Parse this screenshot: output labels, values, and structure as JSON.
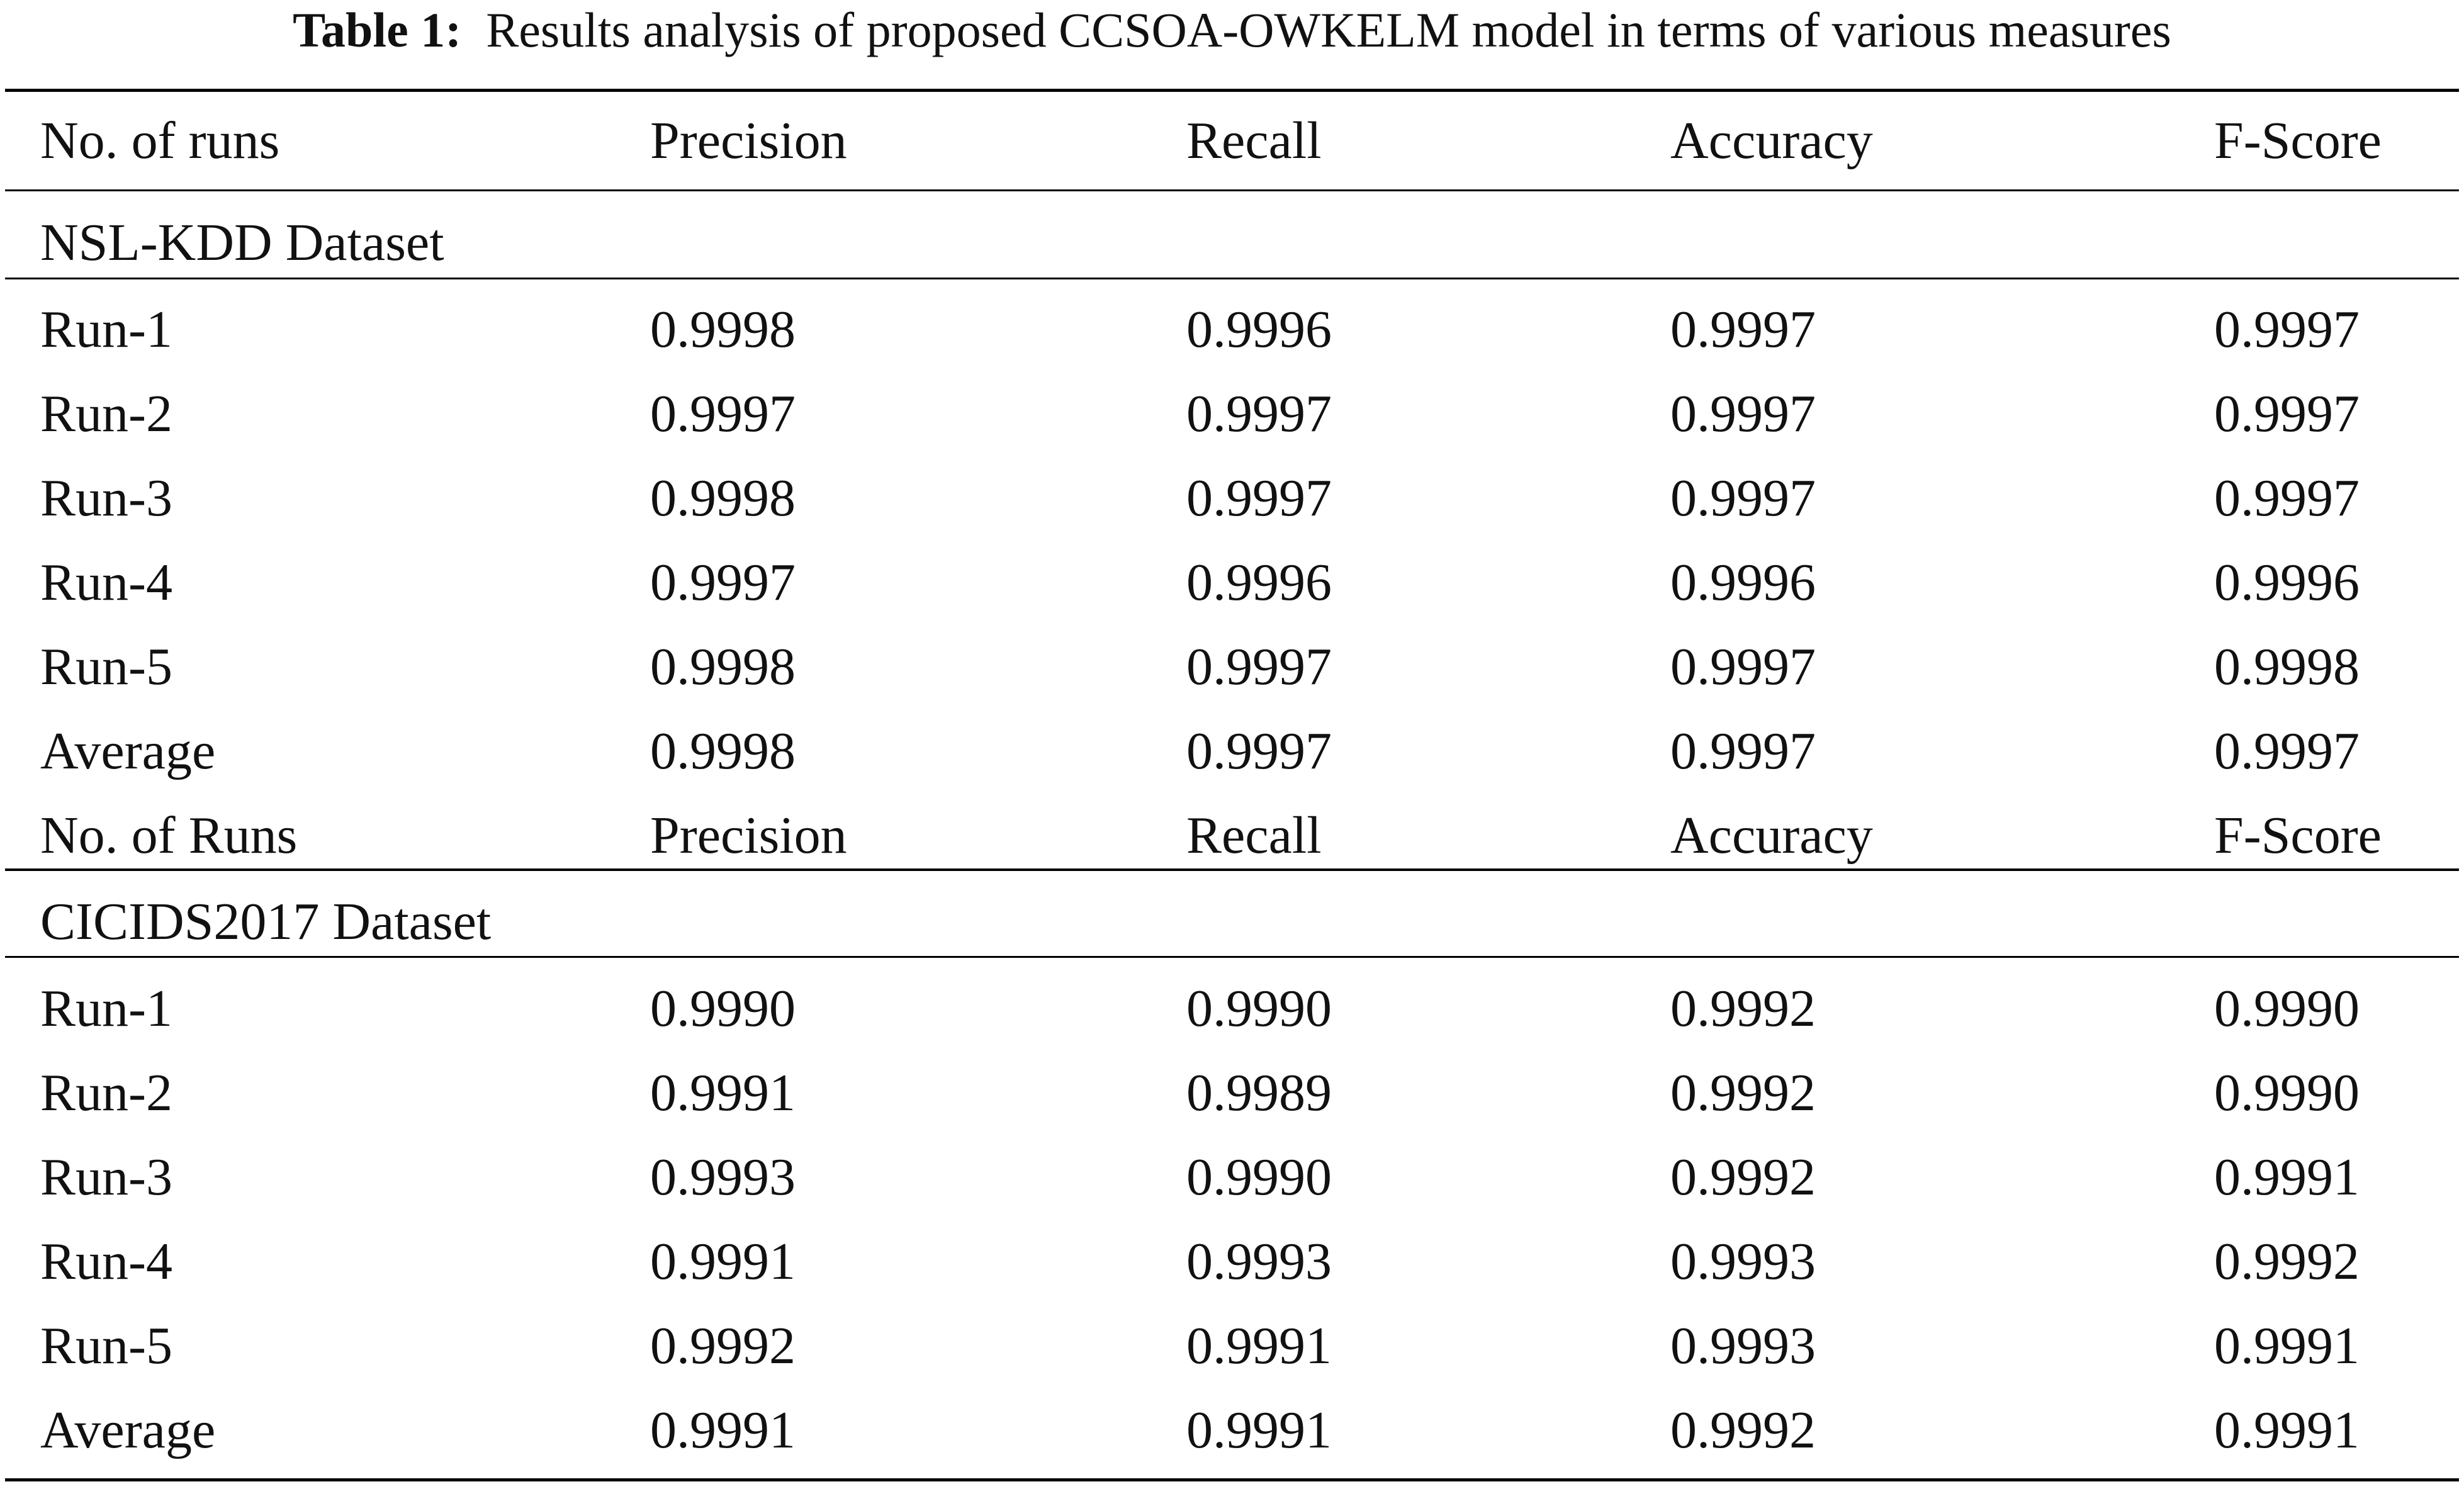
{
  "caption": {
    "label": "Table 1:",
    "text": "Results analysis of proposed CCSOA-OWKELM model in terms of various measures"
  },
  "header": [
    "No. of runs",
    "Precision",
    "Recall",
    "Accuracy",
    "F-Score"
  ],
  "sections": [
    {
      "title": "NSL-KDD Dataset",
      "rows": [
        [
          "Run-1",
          "0.9998",
          "0.9996",
          "0.9997",
          "0.9997"
        ],
        [
          "Run-2",
          "0.9997",
          "0.9997",
          "0.9997",
          "0.9997"
        ],
        [
          "Run-3",
          "0.9998",
          "0.9997",
          "0.9997",
          "0.9997"
        ],
        [
          "Run-4",
          "0.9997",
          "0.9996",
          "0.9996",
          "0.9996"
        ],
        [
          "Run-5",
          "0.9998",
          "0.9997",
          "0.9997",
          "0.9998"
        ],
        [
          "Average",
          "0.9998",
          "0.9997",
          "0.9997",
          "0.9997"
        ]
      ]
    },
    {
      "header": [
        "No. of Runs",
        "Precision",
        "Recall",
        "Accuracy",
        "F-Score"
      ],
      "title": "CICIDS2017 Dataset",
      "rows": [
        [
          "Run-1",
          "0.9990",
          "0.9990",
          "0.9992",
          "0.9990"
        ],
        [
          "Run-2",
          "0.9991",
          "0.9989",
          "0.9992",
          "0.9990"
        ],
        [
          "Run-3",
          "0.9993",
          "0.9990",
          "0.9992",
          "0.9991"
        ],
        [
          "Run-4",
          "0.9991",
          "0.9993",
          "0.9993",
          "0.9992"
        ],
        [
          "Run-5",
          "0.9992",
          "0.9991",
          "0.9993",
          "0.9991"
        ],
        [
          "Average",
          "0.9991",
          "0.9991",
          "0.9992",
          "0.9991"
        ]
      ]
    }
  ]
}
